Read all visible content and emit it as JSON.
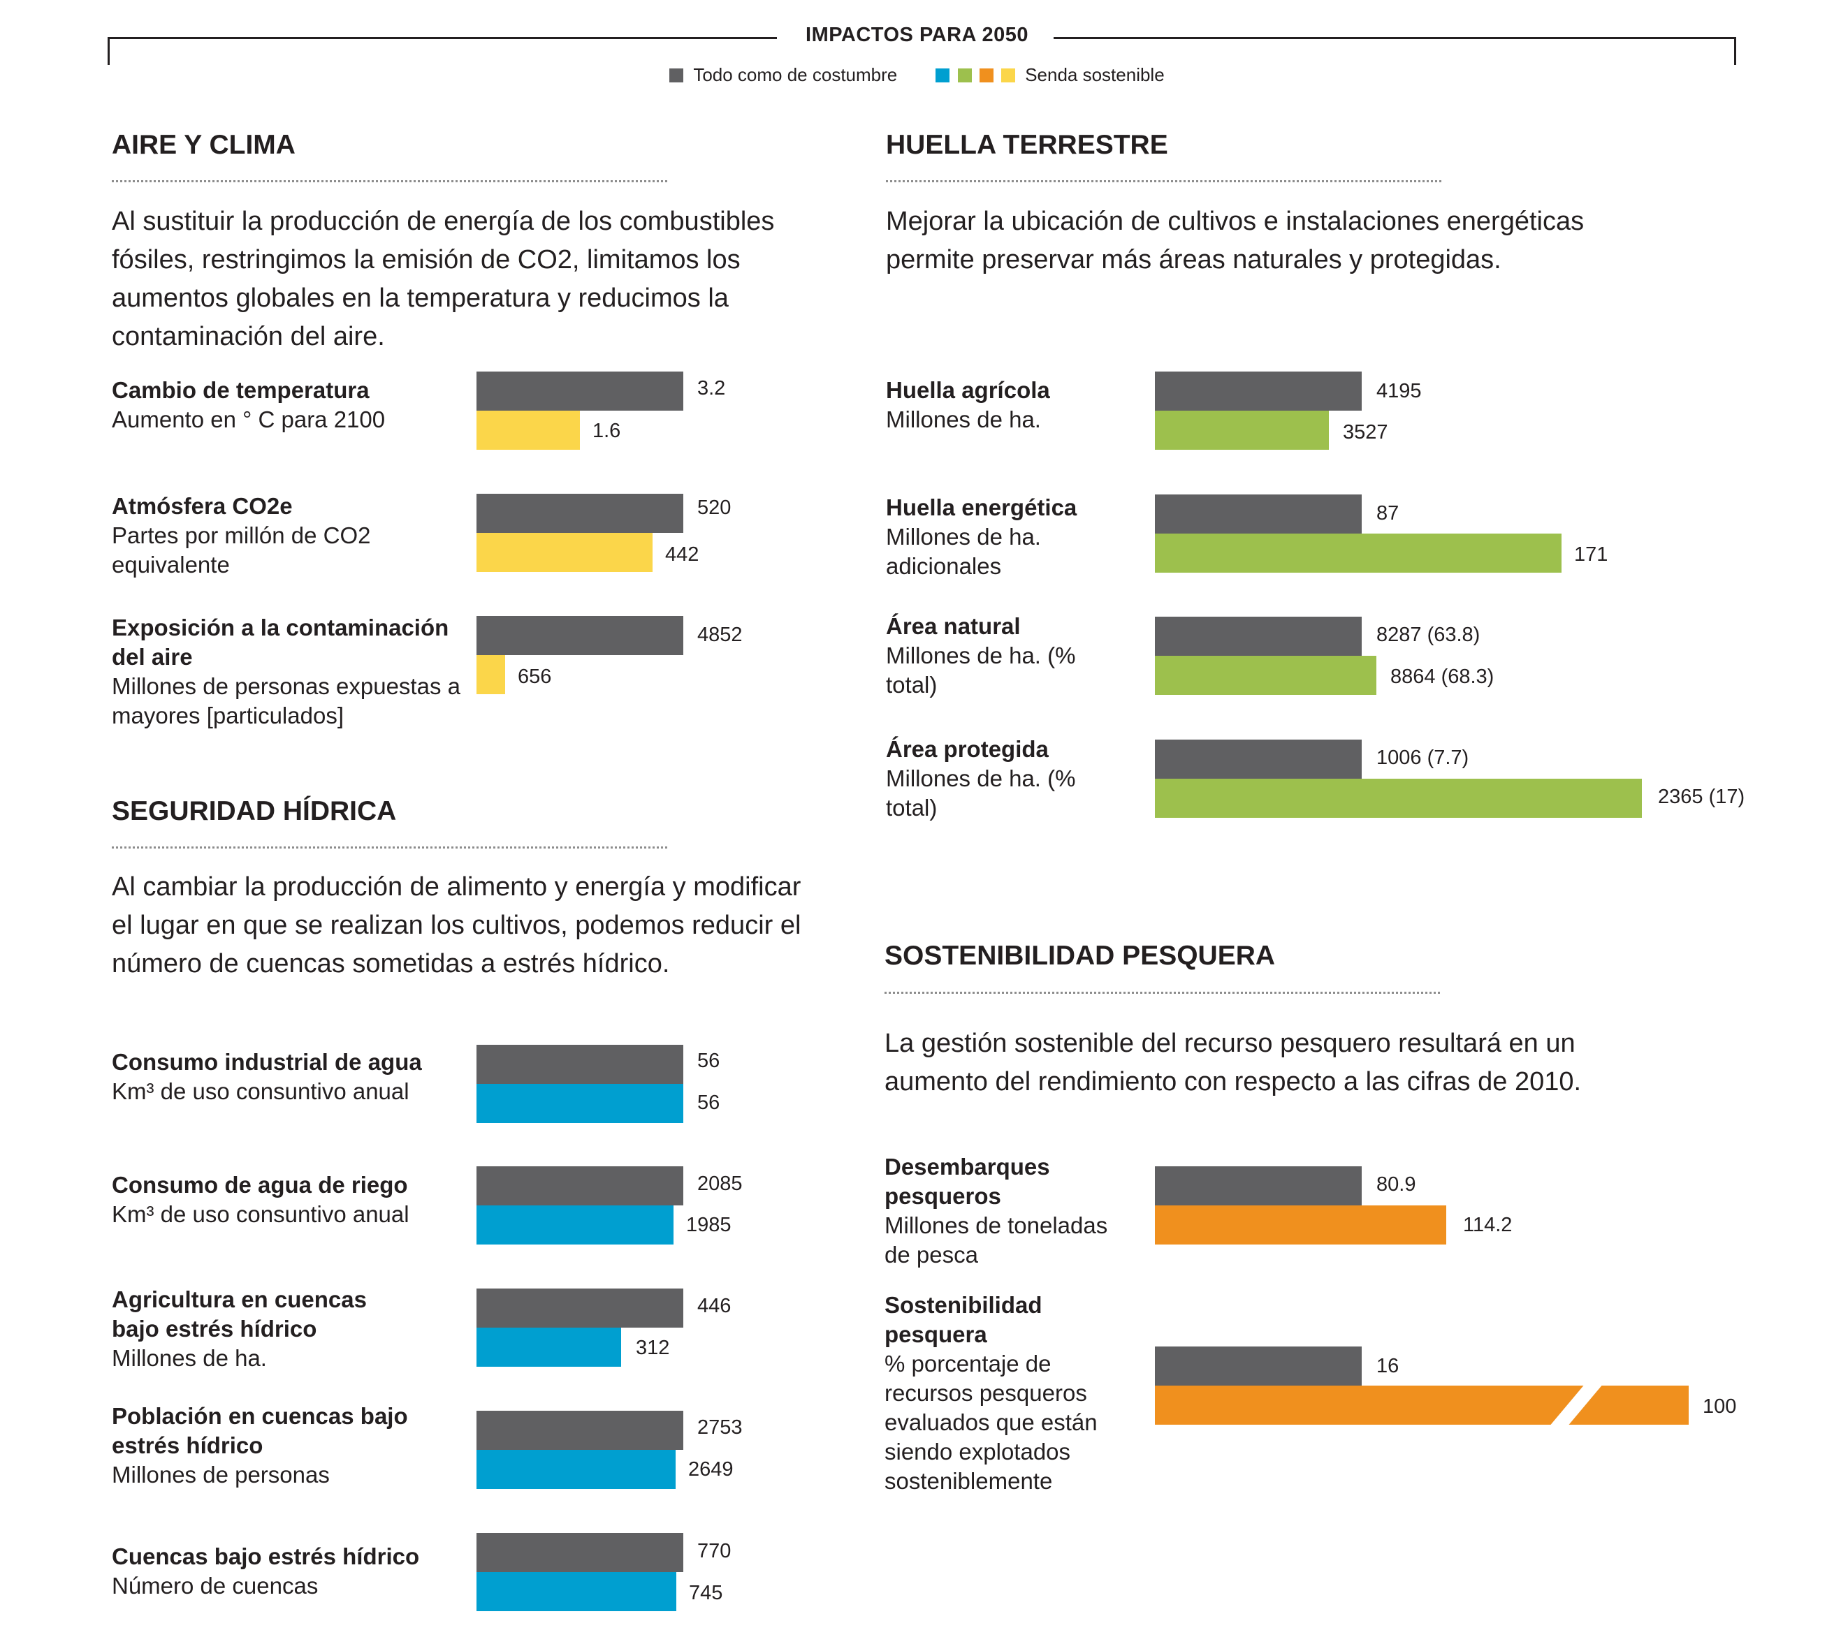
{
  "header": {
    "title": "IMPACTOS PARA 2050",
    "legend": [
      {
        "label": "Todo como de costumbre",
        "colors": [
          "#606062"
        ]
      },
      {
        "label": "Senda sostenible",
        "colors": [
          "#009fd0",
          "#9dc04d",
          "#f0901e",
          "#fbd64a"
        ]
      }
    ]
  },
  "colors": {
    "base": "#606062",
    "aire": "#fbd64a",
    "agua": "#009fd0",
    "tierra": "#9dc04d",
    "pesca": "#f0901e"
  },
  "sections": {
    "aire": {
      "title": "AIRE Y CLIMA",
      "desc": "Al sustituir la producción de energía de los combustibles fósiles, restringimos la emisión de CO2, limitamos los aumentos globales en la temperatura y reducimos la contaminación del aire.",
      "rows": [
        {
          "title": "Cambio de temperatura",
          "sub": "Aumento en ° C para 2100",
          "base_label": "3.2",
          "sust_label": "1.6"
        },
        {
          "title": "Atmósfera CO2e",
          "sub": "Partes por millón de CO2 equivalente",
          "base_label": "520",
          "sust_label": "442"
        },
        {
          "title": "Exposición a la contaminación del aire",
          "sub": "Millones de personas expuestas a mayores [particulados]",
          "base_label": "4852",
          "sust_label": "656"
        }
      ]
    },
    "agua": {
      "title": "SEGURIDAD HÍDRICA",
      "desc": "Al cambiar la producción de alimento y energía y modificar el lugar en que se realizan los cultivos, podemos reducir el número de cuencas sometidas a estrés hídrico.",
      "rows": [
        {
          "title": "Consumo industrial de agua",
          "sub": "Km³ de uso consuntivo anual",
          "base_label": "56",
          "sust_label": "56"
        },
        {
          "title": "Consumo de agua de riego",
          "sub": "Km³ de uso consuntivo anual",
          "base_label": "2085",
          "sust_label": "1985"
        },
        {
          "title": "Agricultura en cuencas bajo estrés hídrico",
          "sub": "Millones de ha.",
          "base_label": "446",
          "sust_label": "312"
        },
        {
          "title": "Población en cuencas bajo estrés hídrico",
          "sub": "Millones de personas",
          "base_label": "2753",
          "sust_label": "2649"
        },
        {
          "title": "Cuencas bajo estrés hídrico",
          "sub": "Número de cuencas",
          "base_label": "770",
          "sust_label": "745"
        }
      ]
    },
    "tierra": {
      "title": "HUELLA TERRESTRE",
      "desc": "Mejorar la ubicación de cultivos e instalaciones energéticas permite preservar más áreas naturales y protegidas.",
      "rows": [
        {
          "title": "Huella agrícola",
          "sub": "Millones de ha.",
          "base_label": "4195",
          "sust_label": "3527"
        },
        {
          "title": "Huella energética",
          "sub": "Millones de ha. adicionales",
          "base_label": "87",
          "sust_label": "171"
        },
        {
          "title": "Área natural",
          "sub": "Millones de ha. (% total)",
          "base_label": "8287 (63.8)",
          "sust_label": "8864 (68.3)"
        },
        {
          "title": "Área protegida",
          "sub": "Millones de ha. (% total)",
          "base_label": "1006 (7.7)",
          "sust_label": "2365 (17)"
        }
      ]
    },
    "pesca": {
      "title": "SOSTENIBILIDAD PESQUERA",
      "desc": "La gestión sostenible del recurso pesquero resultará en un aumento del rendimiento con respecto a las cifras de 2010.",
      "rows": [
        {
          "title": "Desembarques pesqueros",
          "sub": "Millones de toneladas de pesca",
          "base_label": "80.9",
          "sust_label": "114.2"
        },
        {
          "title": "Sostenibilidad pesquera",
          "sub": "% porcentaje de recursos pesqueros evaluados que están siendo explotados sosteniblemente",
          "base_label": "16",
          "sust_label": "100"
        }
      ]
    }
  },
  "chart_data": [
    {
      "type": "bar",
      "title": "AIRE Y CLIMA",
      "categories": [
        "Cambio de temperatura",
        "Atmósfera CO2e",
        "Exposición a la contaminación del aire"
      ],
      "series": [
        {
          "name": "Todo como de costumbre",
          "values": [
            3.2,
            520,
            4852
          ]
        },
        {
          "name": "Senda sostenible",
          "values": [
            1.6,
            442,
            656
          ]
        }
      ]
    },
    {
      "type": "bar",
      "title": "SEGURIDAD HÍDRICA",
      "categories": [
        "Consumo industrial de agua",
        "Consumo de agua de riego",
        "Agricultura en cuencas bajo estrés hídrico",
        "Población en cuencas bajo estrés hídrico",
        "Cuencas bajo estrés hídrico"
      ],
      "series": [
        {
          "name": "Todo como de costumbre",
          "values": [
            56,
            2085,
            446,
            2753,
            770
          ]
        },
        {
          "name": "Senda sostenible",
          "values": [
            56,
            1985,
            312,
            2649,
            745
          ]
        }
      ]
    },
    {
      "type": "bar",
      "title": "HUELLA TERRESTRE",
      "categories": [
        "Huella agrícola",
        "Huella energética",
        "Área natural",
        "Área protegida"
      ],
      "series": [
        {
          "name": "Todo como de costumbre",
          "values": [
            4195,
            87,
            8287,
            1006
          ]
        },
        {
          "name": "Senda sostenible",
          "values": [
            3527,
            171,
            8864,
            2365
          ]
        }
      ]
    },
    {
      "type": "bar",
      "title": "SOSTENIBILIDAD PESQUERA",
      "categories": [
        "Desembarques pesqueros",
        "Sostenibilidad pesquera"
      ],
      "series": [
        {
          "name": "Todo como de costumbre",
          "values": [
            80.9,
            16
          ]
        },
        {
          "name": "Senda sostenible",
          "values": [
            114.2,
            100
          ]
        }
      ]
    }
  ]
}
